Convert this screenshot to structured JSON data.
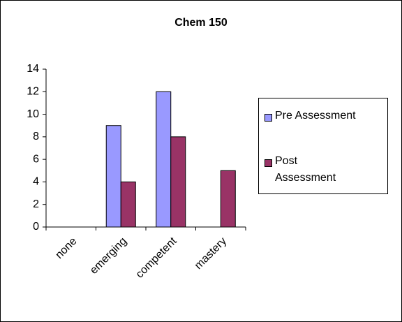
{
  "chart_data": {
    "type": "bar",
    "title": "Chem 150",
    "categories": [
      "none",
      "emerging",
      "competent",
      "mastery"
    ],
    "series": [
      {
        "name": "Pre Assessment",
        "color": "#9999ff",
        "values": [
          0,
          9,
          12,
          0
        ]
      },
      {
        "name": "Post Assessment",
        "color": "#993366",
        "values": [
          0,
          4,
          8,
          5
        ]
      }
    ],
    "ylim": [
      0,
      14
    ],
    "yticks": [
      0,
      2,
      4,
      6,
      8,
      10,
      12,
      14
    ],
    "grid": false,
    "legend": "right"
  }
}
